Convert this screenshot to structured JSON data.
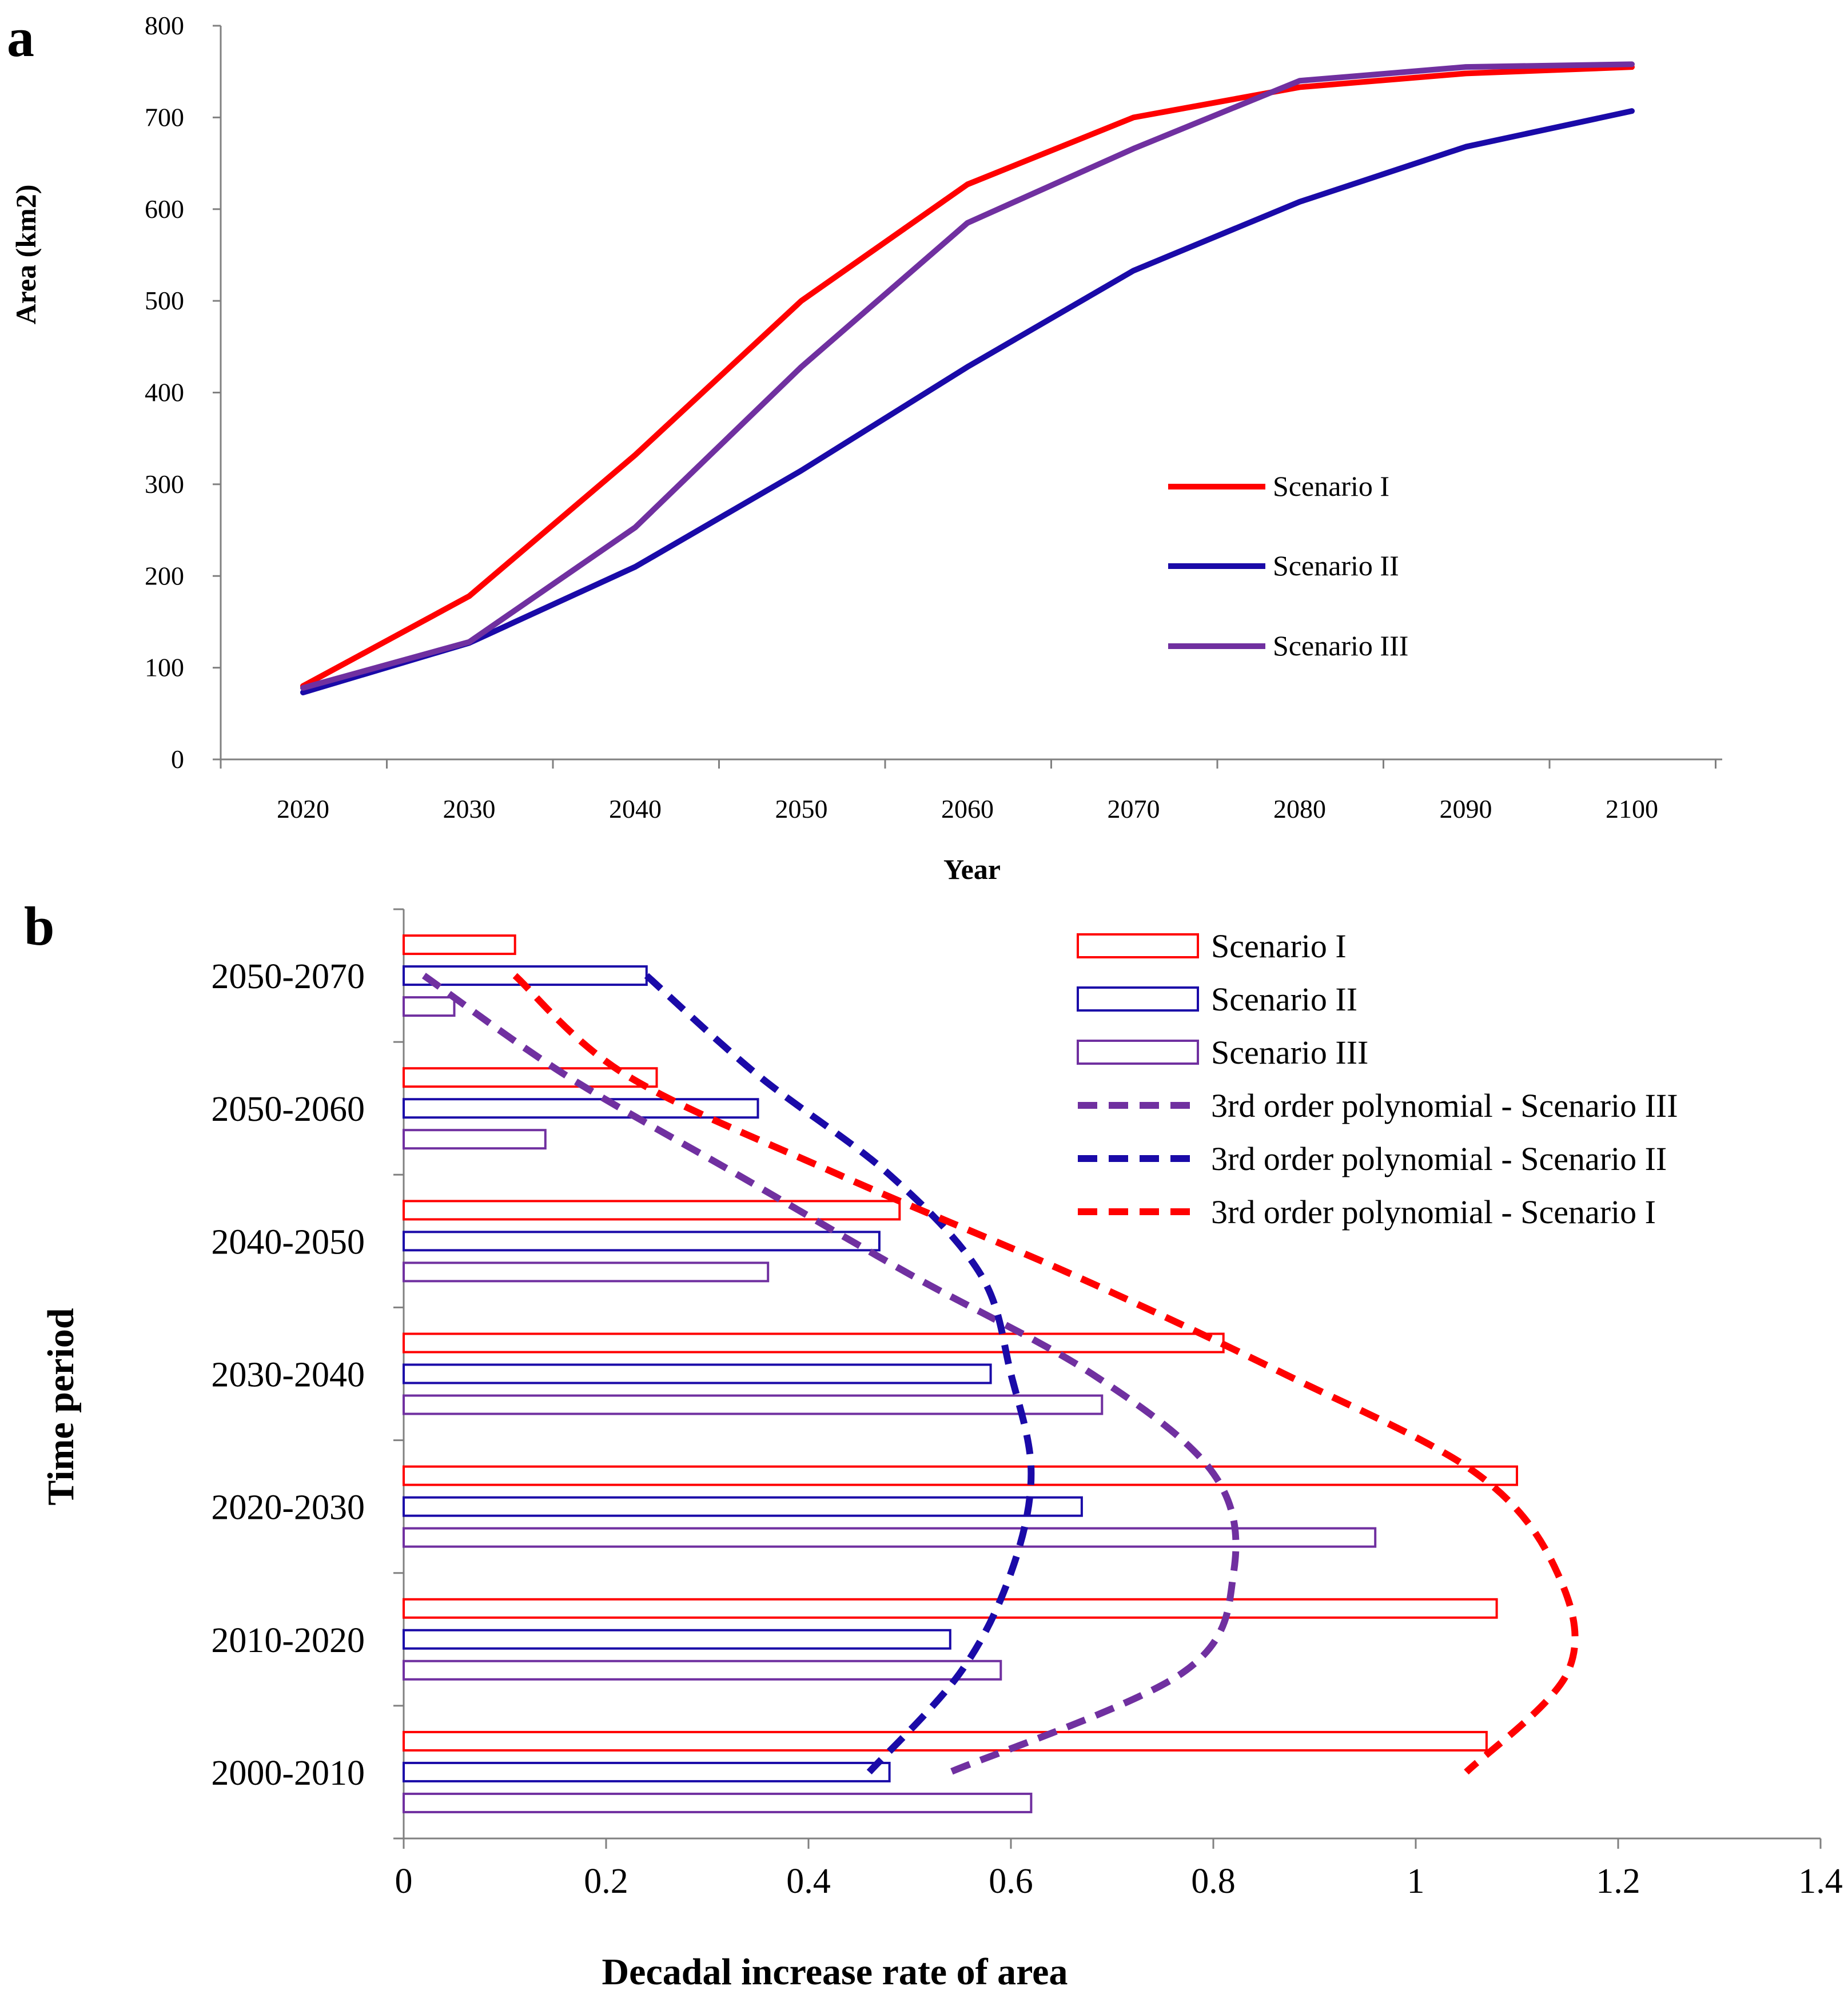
{
  "chart_data": [
    {
      "panel_label": "a",
      "type": "line",
      "title": "",
      "xlabel": "Year",
      "ylabel": "Area (km2)",
      "x": [
        2020,
        2030,
        2040,
        2050,
        2060,
        2070,
        2080,
        2090,
        2100
      ],
      "x_tick_labels": [
        "2020",
        "2030",
        "2040",
        "2050",
        "2060",
        "2070",
        "2080",
        "2090",
        "2100"
      ],
      "ylim": [
        0,
        800
      ],
      "y_ticks": [
        0,
        100,
        200,
        300,
        400,
        500,
        600,
        700,
        800
      ],
      "y_tick_labels": [
        "0",
        "100",
        "200",
        "300",
        "400",
        "500",
        "600",
        "700",
        "800"
      ],
      "legend_position": "right",
      "series": [
        {
          "name": "Scenario I",
          "color": "#ff0000",
          "values": [
            80,
            178,
            332,
            500,
            627,
            700,
            733,
            748,
            755
          ]
        },
        {
          "name": "Scenario II",
          "color": "#1a0aa8",
          "values": [
            73,
            127,
            210,
            315,
            428,
            533,
            608,
            668,
            707
          ]
        },
        {
          "name": "Scenario III",
          "color": "#7030a0",
          "values": [
            78,
            128,
            253,
            428,
            585,
            666,
            740,
            755,
            758
          ]
        }
      ]
    },
    {
      "panel_label": "b",
      "type": "bar",
      "orientation": "horizontal",
      "title": "",
      "xlabel": "Decadal increase rate of area",
      "ylabel": "Time period",
      "categories": [
        "2050-2070",
        "2050-2060",
        "2040-2050",
        "2030-2040",
        "2020-2030",
        "2010-2020",
        "2000-2010"
      ],
      "xlim": [
        0,
        1.4
      ],
      "x_ticks": [
        0,
        0.2,
        0.4,
        0.6,
        0.8,
        1,
        1.2,
        1.4
      ],
      "x_tick_labels": [
        "0",
        "0.2",
        "0.4",
        "0.6",
        "0.8",
        "1",
        "1.2",
        "1.4"
      ],
      "legend_position": "top-right",
      "series": [
        {
          "name": "Scenario I",
          "color": "#ff0000",
          "values": [
            0.11,
            0.25,
            0.49,
            0.81,
            1.1,
            1.08,
            1.07
          ]
        },
        {
          "name": "Scenario II",
          "color": "#1a0aa8",
          "values": [
            0.24,
            0.35,
            0.47,
            0.58,
            0.67,
            0.54,
            0.48
          ]
        },
        {
          "name": "Scenario III",
          "color": "#7030a0",
          "values": [
            0.05,
            0.14,
            0.36,
            0.69,
            0.96,
            0.59,
            0.62
          ]
        }
      ],
      "trendlines": [
        {
          "name": "3rd order polynomial - Scenario III",
          "color": "#7030a0",
          "fit_of": "Scenario III",
          "x": [
            0.02,
            0.16,
            0.33,
            0.5,
            0.68,
            0.8,
            0.82,
            0.77,
            0.54
          ]
        },
        {
          "name": "3rd order polynomial - Scenario II",
          "color": "#1a0aa8",
          "fit_of": "Scenario II",
          "x": [
            0.24,
            0.35,
            0.48,
            0.57,
            0.6,
            0.62,
            0.6,
            0.55,
            0.46
          ]
        },
        {
          "name": "3rd order polynomial - Scenario I",
          "color": "#ff0000",
          "fit_of": "Scenario I",
          "x": [
            0.11,
            0.22,
            0.43,
            0.66,
            0.87,
            1.06,
            1.14,
            1.15,
            1.05
          ]
        }
      ]
    }
  ]
}
